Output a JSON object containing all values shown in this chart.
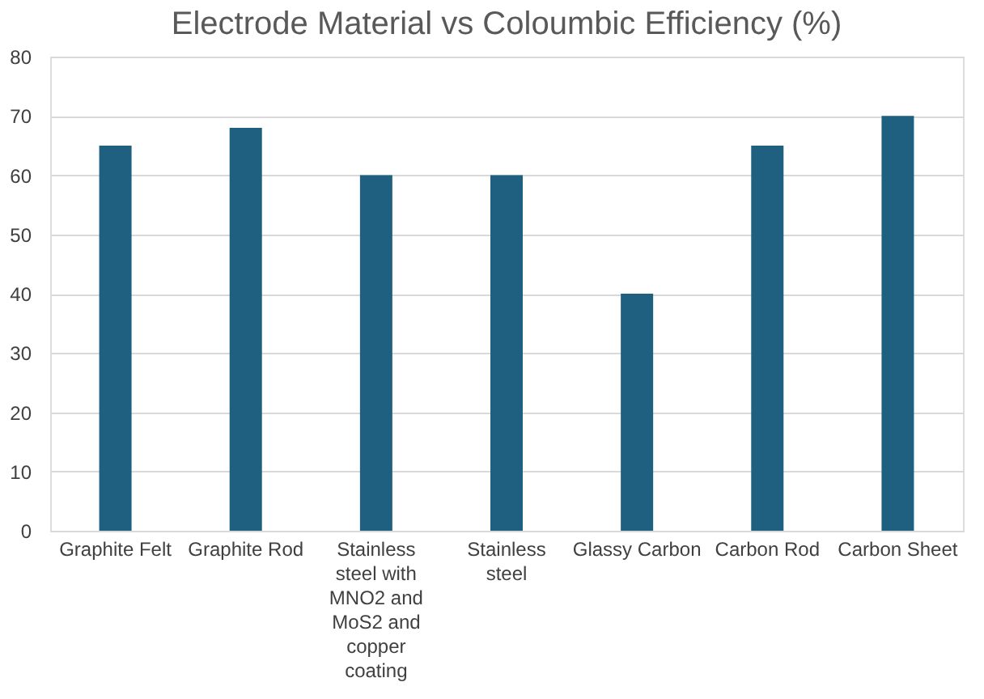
{
  "chart_data": {
    "type": "bar",
    "title": "Electrode Material vs Coloumbic Efficiency (%)",
    "categories": [
      "Graphite Felt",
      "Graphite Rod",
      "Stainless steel with MNO2  and MoS2 and copper coating",
      "Stainless steel",
      "Glassy Carbon",
      "Carbon Rod",
      "Carbon Sheet"
    ],
    "values": [
      65,
      68,
      60,
      60,
      40,
      65,
      70
    ],
    "color": "#1f5f7f",
    "ylim": [
      0,
      80
    ],
    "yticks": [
      0,
      10,
      20,
      30,
      40,
      50,
      60,
      70,
      80
    ],
    "grid": "y"
  }
}
